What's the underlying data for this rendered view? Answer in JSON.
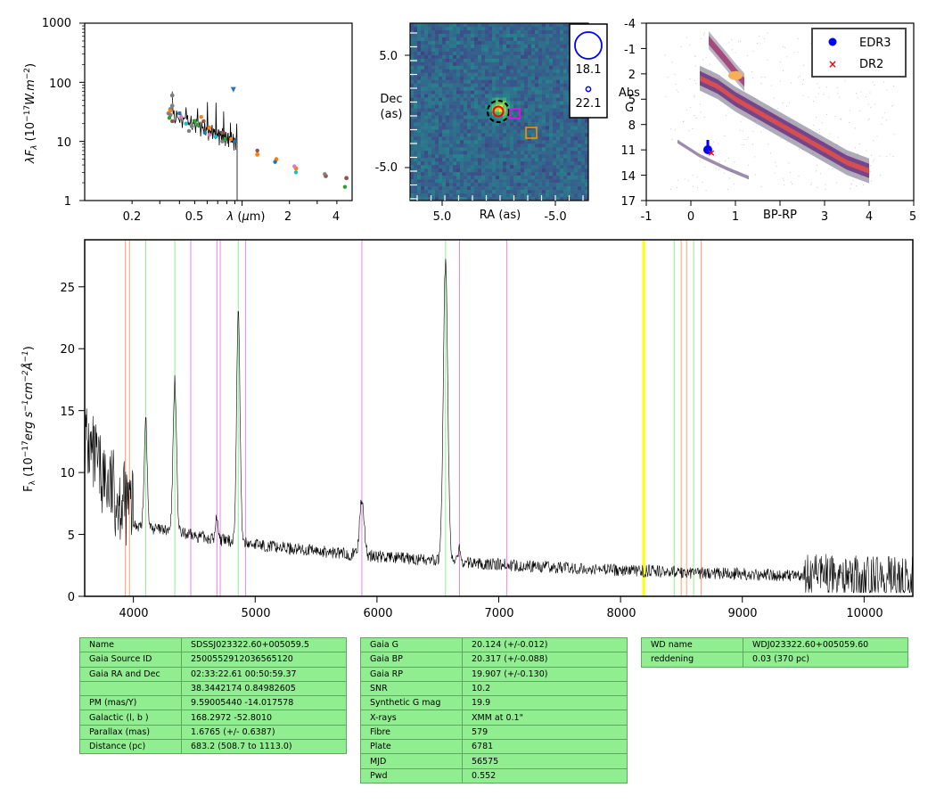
{
  "sed": {
    "ylabel": "λF_λ (10^-17 W.m^-2)",
    "xlabel": "λ (μm)",
    "yticks": [
      "1",
      "10",
      "100",
      "1000"
    ],
    "xticks": [
      "0.2",
      "0.5",
      "1",
      "2",
      "4"
    ]
  },
  "image": {
    "ylabel": [
      "Dec",
      "(as)"
    ],
    "xlabel": "RA (as)",
    "yticks": [
      "5.0",
      "-5.0"
    ],
    "xticks": [
      "5.0",
      "-5.0"
    ],
    "legend": [
      "18.1",
      "22.1"
    ]
  },
  "hr": {
    "ylabel": [
      "Abs",
      "G"
    ],
    "xlabel": "BP-RP",
    "yticks": [
      "-4",
      "-1",
      "2",
      "5",
      "8",
      "11",
      "14",
      "17"
    ],
    "xticks": [
      "-1",
      "0",
      "1",
      "2",
      "3",
      "4",
      "5"
    ],
    "legend": [
      "EDR3",
      "DR2"
    ]
  },
  "spectrum": {
    "ylabel": "F_λ (10^-17 erg s^-1 cm^-2 Å^-1)",
    "yticks": [
      "0",
      "5",
      "10",
      "15",
      "20",
      "25"
    ],
    "xticks": [
      "4000",
      "5000",
      "6000",
      "7000",
      "8000",
      "9000",
      "10000"
    ]
  },
  "colors": {
    "marker_edr3": "#0000ff",
    "marker_dr2": "#ff0000",
    "table_bg": "#90ee90",
    "balmer_line": "#90ee90",
    "he_line": "#ee82ee",
    "ca_line": "#ffa07a"
  },
  "chart_data": [
    {
      "type": "scatter",
      "name": "SED",
      "yscale": "log",
      "xscale": "log",
      "xlim": [
        0.1,
        5
      ],
      "ylim": [
        1,
        1000
      ],
      "series": [
        {
          "x": [
            0.35,
            0.35,
            0.36,
            0.36
          ],
          "y": [
            28,
            35,
            40,
            60
          ]
        },
        {
          "x": [
            0.48,
            0.5,
            0.62,
            0.75,
            0.9
          ],
          "y": [
            18,
            22,
            17,
            14,
            10
          ]
        },
        {
          "x": [
            1.25,
            1.65,
            2.2
          ],
          "y": [
            6,
            5,
            3.5
          ]
        },
        {
          "x": [
            3.4,
            4.6
          ],
          "y": [
            2.6,
            2.4
          ]
        },
        {
          "x": [
            0.88
          ],
          "y": [
            75
          ]
        }
      ]
    },
    {
      "type": "scatter",
      "name": "HR diagram",
      "xlim": [
        -1,
        5
      ],
      "ylim": [
        17,
        -4
      ],
      "series": [
        {
          "name": "EDR3",
          "x": [
            0.4
          ],
          "y": [
            11
          ]
        },
        {
          "name": "DR2",
          "x": [
            0.45
          ],
          "y": [
            11.3
          ]
        }
      ]
    },
    {
      "type": "line",
      "name": "Spectrum",
      "xlim": [
        3600,
        10400
      ],
      "ylim": [
        0,
        28.8
      ],
      "x": [
        3600,
        3750,
        3900,
        4000,
        4101,
        4200,
        4340,
        4471,
        4600,
        4686,
        4861,
        4950,
        5100,
        5500,
        5876,
        6000,
        6300,
        6563,
        6678,
        7000,
        7500,
        8000,
        8500,
        9000,
        9500,
        10000,
        10400
      ],
      "y": [
        13,
        10,
        7.5,
        6,
        14.5,
        5.2,
        17.5,
        5.2,
        5,
        6.5,
        23,
        4.6,
        4.3,
        3.8,
        8,
        3.3,
        3.2,
        27,
        3.5,
        2.7,
        2.5,
        2.2,
        2,
        1.9,
        1.8,
        1.7,
        1.5
      ],
      "lines": [
        {
          "kind": "ca",
          "x": [
            3934,
            3968,
            8498,
            8542,
            8662
          ]
        },
        {
          "kind": "balmer",
          "x": [
            4101,
            4340,
            4861,
            6563,
            8440,
            8600
          ]
        },
        {
          "kind": "he",
          "x": [
            4471,
            4686,
            4713,
            4922,
            5876,
            6678,
            7065
          ]
        },
        {
          "kind": "telluric",
          "x": [
            8190
          ]
        }
      ]
    }
  ],
  "tables": {
    "t1": [
      [
        "Name",
        "SDSSJ023322.60+005059.5"
      ],
      [
        "Gaia Source ID",
        "2500552912036565120"
      ],
      [
        "Gaia RA and Dec",
        "02:33:22.61    00:50:59.37"
      ],
      [
        "",
        "38.3442174    0.84982605"
      ],
      [
        "PM (mas/Y)",
        "9.59005440    -14.017578"
      ],
      [
        "Galactic (l, b )",
        "168.2972    -52.8010"
      ],
      [
        "Parallax (mas)",
        "1.6765 (+/- 0.6387)"
      ],
      [
        "Distance (pc)",
        "683.2 (508.7 to 1113.0)"
      ]
    ],
    "t2": [
      [
        "Gaia G",
        "20.124 (+/-0.012)"
      ],
      [
        "Gaia BP",
        "20.317 (+/-0.088)"
      ],
      [
        "Gaia RP",
        "19.907 (+/-0.130)"
      ],
      [
        "SNR",
        "10.2"
      ],
      [
        "Synthetic G mag",
        "19.9"
      ],
      [
        "X-rays",
        "XMM at 0.1\""
      ],
      [
        "Fibre",
        "579"
      ],
      [
        "Plate",
        "6781"
      ],
      [
        "MJD",
        "56575"
      ],
      [
        "Pwd",
        "0.552"
      ]
    ],
    "t3": [
      [
        "WD name",
        "WDJ023322.60+005059.60"
      ],
      [
        "reddening",
        "0.03 (370 pc)"
      ]
    ]
  }
}
